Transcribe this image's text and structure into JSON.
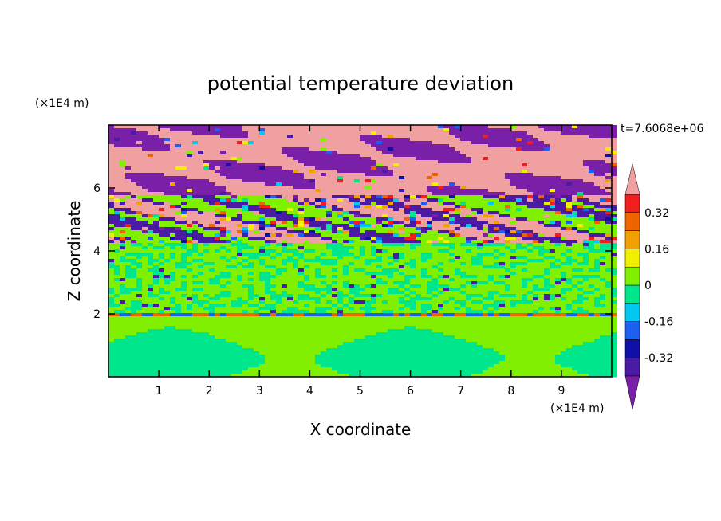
{
  "chart_data": {
    "type": "heatmap",
    "title": "potential temperature deviation",
    "xlabel": "X coordinate",
    "ylabel": "Z coordinate",
    "x_unit": "(×1E4 m)",
    "y_unit": "(×1E4 m)",
    "time_label": "t=7.6068e+06",
    "xlim": [
      0,
      10
    ],
    "ylim": [
      0,
      8
    ],
    "x_ticks": [
      "1",
      "2",
      "3",
      "4",
      "5",
      "6",
      "7",
      "8",
      "9"
    ],
    "y_ticks": [
      "2",
      "4",
      "6"
    ],
    "colorbar": {
      "levels": [
        -0.48,
        -0.4,
        -0.32,
        -0.24,
        -0.16,
        -0.08,
        0,
        0.08,
        0.16,
        0.24,
        0.32,
        0.4,
        0.48
      ],
      "tick_labels": [
        "0.32",
        "0.16",
        "0",
        "-0.16",
        "-0.32"
      ],
      "colors_low_to_high": [
        "#7a1fa8",
        "#4b1aa3",
        "#1010a8",
        "#1d5ff0",
        "#00c8f0",
        "#00e68c",
        "#80f000",
        "#f0f000",
        "#f0a000",
        "#f06400",
        "#f01e1e",
        "#f0a0a0"
      ]
    },
    "bands": [
      {
        "z_range": [
          0,
          2.0
        ],
        "dominant": "#00e68c",
        "secondary": "#80f000"
      },
      {
        "z_range": [
          2.0,
          2.1
        ],
        "dominant": "#1d5ff0",
        "secondary": "#f06400"
      },
      {
        "z_range": [
          2.1,
          4.3
        ],
        "dominant": "#80f000",
        "secondary": "#00e68c"
      },
      {
        "z_range": [
          4.3,
          5.8
        ],
        "dominant": "#4b1aa3",
        "secondary": "#00c8f0"
      },
      {
        "z_range": [
          5.8,
          8.0
        ],
        "dominant": "#f0a0a0",
        "secondary": "#7a1fa8"
      }
    ]
  }
}
